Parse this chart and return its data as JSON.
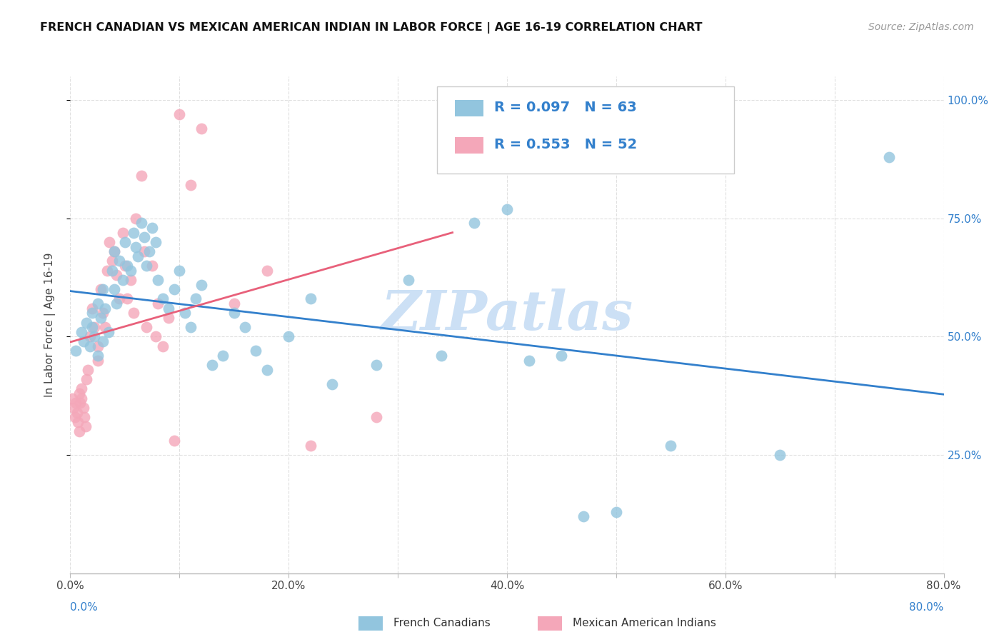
{
  "title": "FRENCH CANADIAN VS MEXICAN AMERICAN INDIAN IN LABOR FORCE | AGE 16-19 CORRELATION CHART",
  "source": "Source: ZipAtlas.com",
  "ylabel_text": "In Labor Force | Age 16-19",
  "xlim": [
    0.0,
    0.8
  ],
  "ylim": [
    0.0,
    1.05
  ],
  "xtick_vals": [
    0.0,
    0.1,
    0.2,
    0.3,
    0.4,
    0.5,
    0.6,
    0.7,
    0.8
  ],
  "xtick_labels": [
    "0.0%",
    "",
    "20.0%",
    "",
    "40.0%",
    "",
    "60.0%",
    "",
    "80.0%"
  ],
  "ytick_vals": [
    0.25,
    0.5,
    0.75,
    1.0
  ],
  "ytick_labels": [
    "25.0%",
    "50.0%",
    "75.0%",
    "100.0%"
  ],
  "blue_color": "#92c5de",
  "blue_line_color": "#3380cc",
  "pink_color": "#f4a7b9",
  "pink_line_color": "#e8607a",
  "legend_text_color": "#3380cc",
  "r_blue": 0.097,
  "n_blue": 63,
  "r_pink": 0.553,
  "n_pink": 52,
  "blue_x": [
    0.005,
    0.01,
    0.012,
    0.015,
    0.018,
    0.02,
    0.02,
    0.022,
    0.025,
    0.025,
    0.028,
    0.03,
    0.03,
    0.032,
    0.035,
    0.038,
    0.04,
    0.04,
    0.042,
    0.045,
    0.048,
    0.05,
    0.052,
    0.055,
    0.058,
    0.06,
    0.062,
    0.065,
    0.068,
    0.07,
    0.072,
    0.075,
    0.078,
    0.08,
    0.085,
    0.09,
    0.095,
    0.1,
    0.105,
    0.11,
    0.115,
    0.12,
    0.13,
    0.14,
    0.15,
    0.16,
    0.17,
    0.18,
    0.2,
    0.22,
    0.24,
    0.28,
    0.31,
    0.34,
    0.37,
    0.4,
    0.42,
    0.45,
    0.47,
    0.5,
    0.55,
    0.65,
    0.75
  ],
  "blue_y": [
    0.47,
    0.51,
    0.49,
    0.53,
    0.48,
    0.52,
    0.55,
    0.5,
    0.46,
    0.57,
    0.54,
    0.49,
    0.6,
    0.56,
    0.51,
    0.64,
    0.68,
    0.6,
    0.57,
    0.66,
    0.62,
    0.7,
    0.65,
    0.64,
    0.72,
    0.69,
    0.67,
    0.74,
    0.71,
    0.65,
    0.68,
    0.73,
    0.7,
    0.62,
    0.58,
    0.56,
    0.6,
    0.64,
    0.55,
    0.52,
    0.58,
    0.61,
    0.44,
    0.46,
    0.55,
    0.52,
    0.47,
    0.43,
    0.5,
    0.58,
    0.4,
    0.44,
    0.62,
    0.46,
    0.74,
    0.77,
    0.45,
    0.46,
    0.12,
    0.13,
    0.27,
    0.25,
    0.88
  ],
  "pink_x": [
    0.002,
    0.003,
    0.004,
    0.005,
    0.006,
    0.007,
    0.008,
    0.008,
    0.009,
    0.01,
    0.01,
    0.012,
    0.013,
    0.014,
    0.015,
    0.016,
    0.018,
    0.02,
    0.022,
    0.025,
    0.025,
    0.028,
    0.03,
    0.032,
    0.034,
    0.036,
    0.038,
    0.04,
    0.042,
    0.045,
    0.048,
    0.05,
    0.052,
    0.055,
    0.058,
    0.06,
    0.065,
    0.068,
    0.07,
    0.075,
    0.078,
    0.08,
    0.085,
    0.09,
    0.095,
    0.1,
    0.11,
    0.12,
    0.15,
    0.18,
    0.22,
    0.28
  ],
  "pink_y": [
    0.37,
    0.35,
    0.33,
    0.36,
    0.34,
    0.32,
    0.3,
    0.38,
    0.36,
    0.39,
    0.37,
    0.35,
    0.33,
    0.31,
    0.41,
    0.43,
    0.5,
    0.56,
    0.52,
    0.48,
    0.45,
    0.6,
    0.55,
    0.52,
    0.64,
    0.7,
    0.66,
    0.68,
    0.63,
    0.58,
    0.72,
    0.65,
    0.58,
    0.62,
    0.55,
    0.75,
    0.84,
    0.68,
    0.52,
    0.65,
    0.5,
    0.57,
    0.48,
    0.54,
    0.28,
    0.97,
    0.82,
    0.94,
    0.57,
    0.64,
    0.27,
    0.33
  ],
  "watermark": "ZIPatlas",
  "watermark_color": "#cce0f5",
  "grid_color": "#e0e0e0",
  "background_color": "#ffffff"
}
